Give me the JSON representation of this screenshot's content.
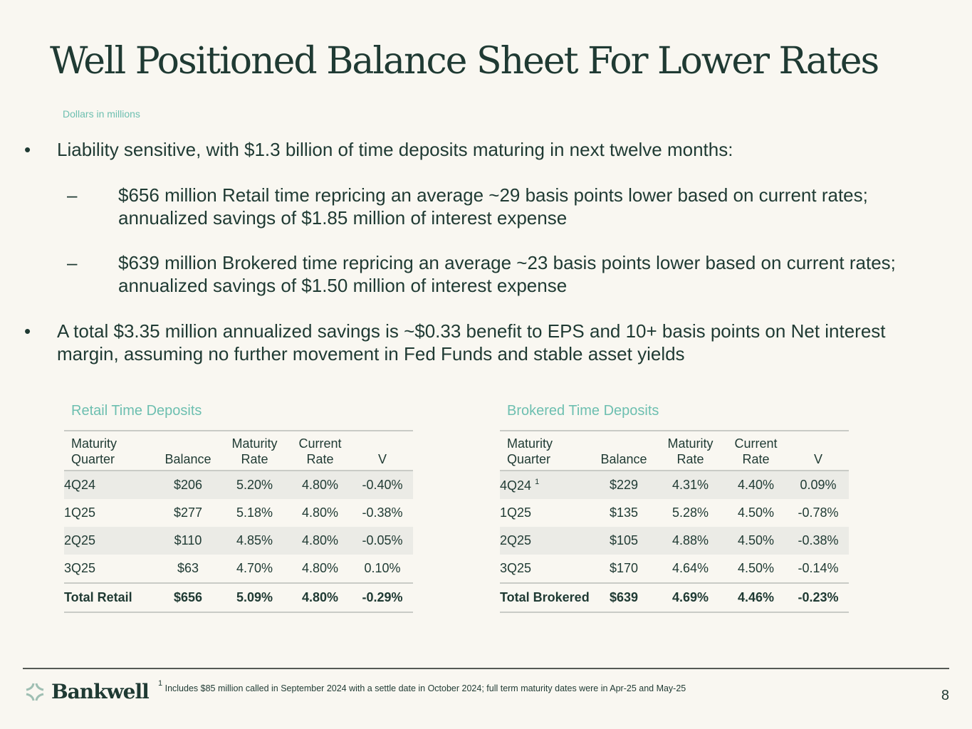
{
  "title": "Well Positioned Balance Sheet For Lower Rates",
  "subtitle": "Dollars in millions",
  "bullets": [
    {
      "text": "Liability sensitive, with $1.3 billion of time deposits maturing in next twelve months:",
      "subs": [
        "$656 million Retail time repricing an average ~29 basis points lower based on current rates; annualized savings of $1.85 million of interest expense",
        "$639 million Brokered time repricing an average ~23 basis points lower based on current rates; annualized savings of $1.50 million of interest expense"
      ]
    },
    {
      "text": "A total $3.35 million annualized savings is ~$0.33 benefit to EPS and 10+ basis points on Net interest margin, assuming no further movement in Fed Funds and stable asset yields"
    }
  ],
  "bullet_glyph": "•",
  "dash_glyph": "–",
  "headers": {
    "maturity": "Maturity",
    "quarter": "Quarter",
    "balance": "Balance",
    "maturity_rate_1": "Maturity",
    "maturity_rate_2": "Rate",
    "current_rate_1": "Current",
    "current_rate_2": "Rate",
    "v": "V"
  },
  "retail": {
    "caption": "Retail Time Deposits",
    "rows": [
      [
        "4Q24",
        "$206",
        "5.20%",
        "4.80%",
        "-0.40%"
      ],
      [
        "1Q25",
        "$277",
        "5.18%",
        "4.80%",
        "-0.38%"
      ],
      [
        "2Q25",
        "$110",
        "4.85%",
        "4.80%",
        "-0.05%"
      ],
      [
        "3Q25",
        "$63",
        "4.70%",
        "4.80%",
        "0.10%"
      ]
    ],
    "total": [
      "Total Retail",
      "$656",
      "5.09%",
      "4.80%",
      "-0.29%"
    ]
  },
  "brokered": {
    "caption": "Brokered Time Deposits",
    "footnote_mark": "1",
    "rows": [
      [
        "4Q24",
        "$229",
        "4.31%",
        "4.40%",
        "0.09%"
      ],
      [
        "1Q25",
        "$135",
        "5.28%",
        "4.50%",
        "-0.78%"
      ],
      [
        "2Q25",
        "$105",
        "4.88%",
        "4.50%",
        "-0.38%"
      ],
      [
        "3Q25",
        "$170",
        "4.64%",
        "4.50%",
        "-0.14%"
      ]
    ],
    "total": [
      "Total Brokered",
      "$639",
      "4.69%",
      "4.46%",
      "-0.23%"
    ]
  },
  "footer": {
    "logo": "Bankwell",
    "footnote_mark": "1",
    "footnote": "Includes $85 million called in September 2024 with a settle date in October 2024; full term maturity dates were in Apr-25 and May-25",
    "page": "8"
  },
  "colors": {
    "primary": "#1f3a33",
    "accent": "#6dbfb0",
    "shade": "#ebebe6"
  }
}
